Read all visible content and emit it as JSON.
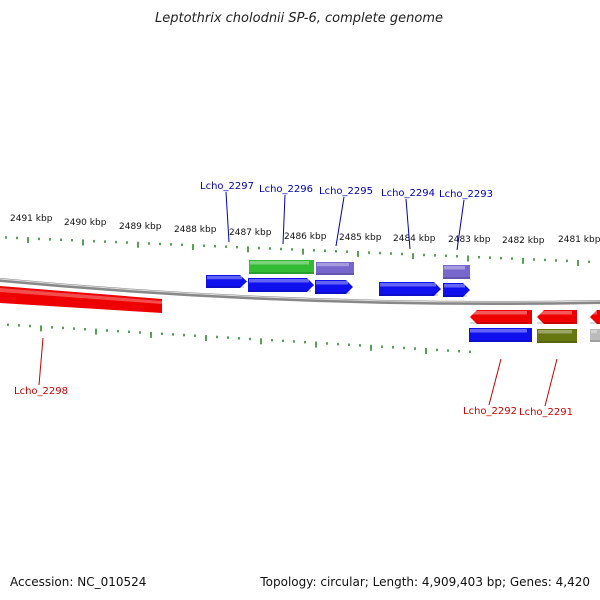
{
  "title": "Leptothrix cholodnii SP-6, complete genome",
  "footer": {
    "accession": "Accession: NC_010524",
    "summary": "Topology: circular; Length: 4,909,403 bp; Genes: 4,420"
  },
  "ruler": {
    "unit": "kbp",
    "labels": [
      "2491 kbp",
      "2490 kbp",
      "2489 kbp",
      "2488 kbp",
      "2487 kbp",
      "2486 kbp",
      "2485 kbp",
      "2484 kbp",
      "2483 kbp",
      "2482 kbp",
      "2481 kbp"
    ]
  },
  "colors": {
    "forward_label": "#0000bb",
    "reverse_label": "#cc0000",
    "backbone": "#888888",
    "tick": "#2a8a2a",
    "cds_blue": "#1010ee",
    "cds_red": "#ee0000",
    "gene_green": "#33bb33",
    "gene_purple": "#7766cc",
    "gene_olive": "#667711",
    "gene_gray": "#bbbbbb"
  },
  "genes": {
    "forward": [
      "Lcho_2297",
      "Lcho_2296",
      "Lcho_2295",
      "Lcho_2294",
      "Lcho_2293"
    ],
    "reverse": [
      "Lcho_2298",
      "Lcho_2292",
      "Lcho_2291"
    ]
  }
}
